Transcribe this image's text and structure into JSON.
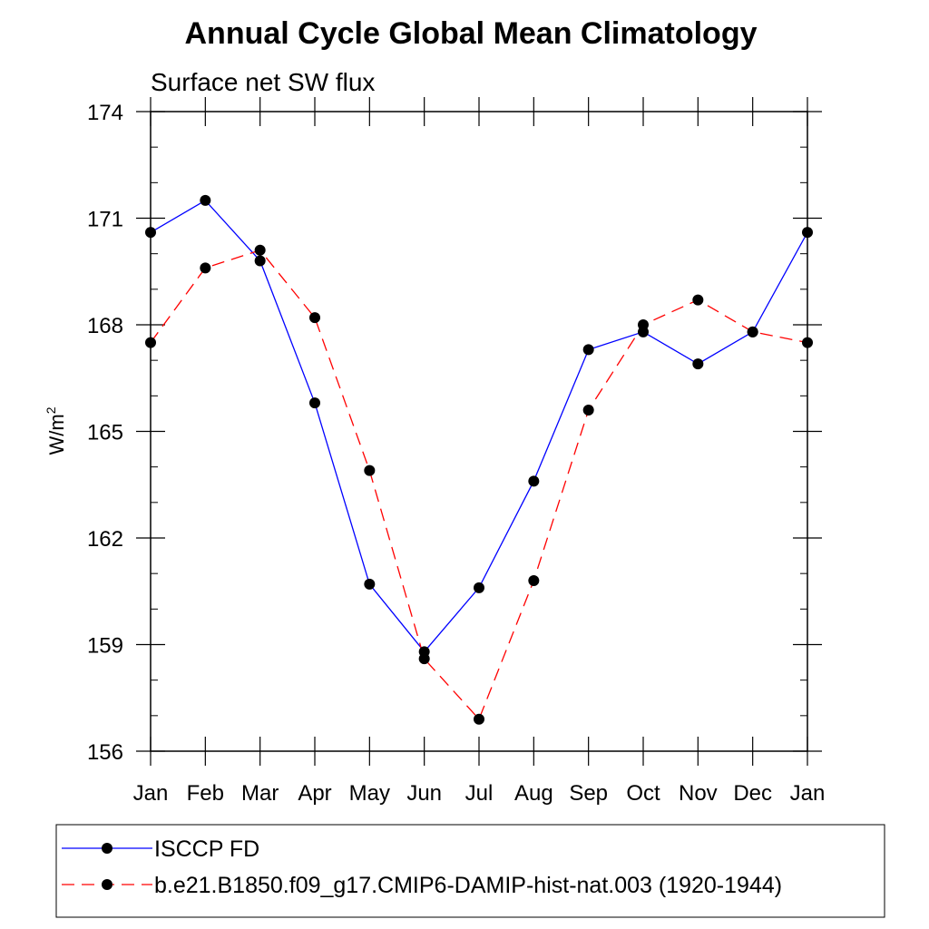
{
  "chart_data": {
    "type": "line",
    "title": "Annual Cycle Global Mean Climatology",
    "subtitle": "Surface net SW flux",
    "ylabel": "W/m",
    "ylabel_sup": "2",
    "ylim": [
      156,
      174
    ],
    "yticks": [
      156,
      159,
      162,
      165,
      168,
      171,
      174
    ],
    "yminor_step": 1,
    "categories": [
      "Jan",
      "Feb",
      "Mar",
      "Apr",
      "May",
      "Jun",
      "Jul",
      "Aug",
      "Sep",
      "Oct",
      "Nov",
      "Dec",
      "Jan"
    ],
    "series": [
      {
        "name": "ISCCP FD",
        "color": "#0000ff",
        "dash": "solid",
        "values": [
          170.6,
          171.5,
          169.8,
          165.8,
          160.7,
          158.8,
          160.6,
          163.6,
          167.3,
          167.8,
          166.9,
          167.8,
          170.6
        ]
      },
      {
        "name": "b.e21.B1850.f09_g17.CMIP6-DAMIP-hist-nat.003 (1920-1944)",
        "color": "#ff0000",
        "dash": "dashed",
        "values": [
          167.5,
          169.6,
          170.1,
          168.2,
          163.9,
          158.6,
          156.9,
          160.8,
          165.6,
          168.0,
          168.7,
          167.8,
          167.5
        ]
      }
    ],
    "legend_position": "bottom"
  }
}
